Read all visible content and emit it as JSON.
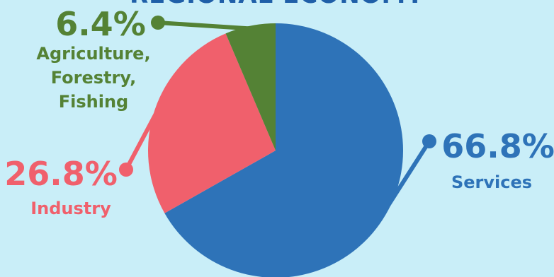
{
  "chart_data": {
    "type": "pie",
    "title": "REGIONAL ECONOMY",
    "slices": [
      {
        "label": "Services",
        "value": 66.8,
        "display": "66.8%",
        "color": "#2e73b8"
      },
      {
        "label": "Industry",
        "value": 26.8,
        "display": "26.8%",
        "color": "#f0606c"
      },
      {
        "label": "Agriculture, Forestry, Fishing",
        "label_lines": [
          "Agriculture,",
          "Forestry,",
          "Fishing"
        ],
        "value": 6.4,
        "display": "6.4%",
        "color": "#548235"
      }
    ],
    "legend": "none",
    "start_angle_deg": 0,
    "direction": "clockwise"
  }
}
